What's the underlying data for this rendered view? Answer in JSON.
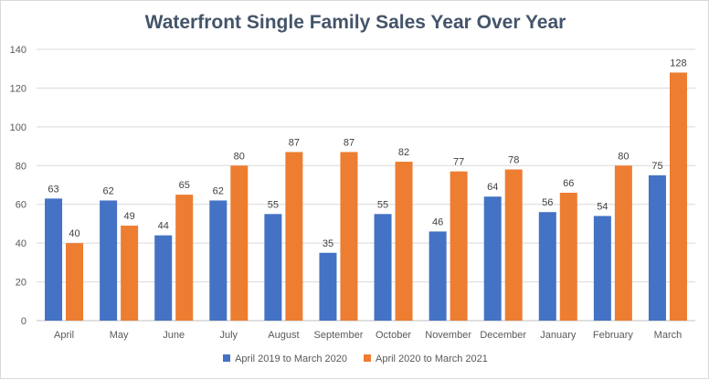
{
  "chart_data": {
    "type": "bar",
    "title": "Waterfront Single Family Sales Year Over Year",
    "categories": [
      "April",
      "May",
      "June",
      "July",
      "August",
      "September",
      "October",
      "November",
      "December",
      "January",
      "February",
      "March"
    ],
    "series": [
      {
        "name": "April 2019 to March 2020",
        "color": "#4472c4",
        "values": [
          63,
          62,
          44,
          62,
          55,
          35,
          55,
          46,
          64,
          56,
          54,
          75
        ]
      },
      {
        "name": "April 2020 to March 2021",
        "color": "#ed7d31",
        "values": [
          40,
          49,
          65,
          80,
          87,
          87,
          82,
          77,
          78,
          66,
          80,
          128
        ]
      }
    ],
    "ylim": [
      0,
      140
    ],
    "yticks": [
      0,
      20,
      40,
      60,
      80,
      100,
      120,
      140
    ],
    "grid": true,
    "legend_position": "bottom",
    "data_labels": true
  }
}
